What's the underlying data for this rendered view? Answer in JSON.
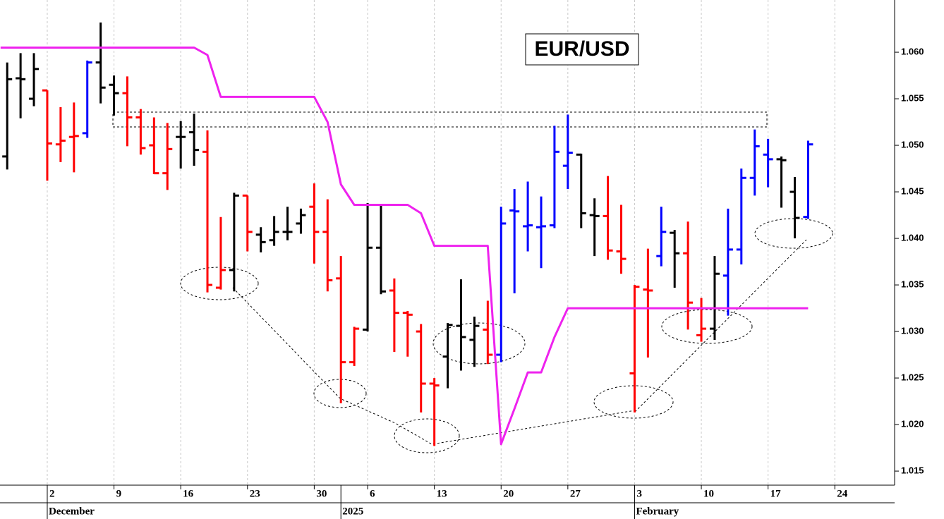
{
  "chart_data": {
    "type": "ohlc",
    "title": "EUR/USD",
    "xlim": [
      -3.54,
      63.48
    ],
    "ylim": [
      1.01349,
      1.06561
    ],
    "grid": true,
    "xticks": [
      {
        "value": 0,
        "label": "2"
      },
      {
        "value": 5,
        "label": "9"
      },
      {
        "value": 10,
        "label": "16"
      },
      {
        "value": 15,
        "label": "23"
      },
      {
        "value": 20,
        "label": "30"
      },
      {
        "value": 24,
        "label": "6"
      },
      {
        "value": 29,
        "label": "13"
      },
      {
        "value": 34,
        "label": "20"
      },
      {
        "value": 39,
        "label": "27"
      },
      {
        "value": 44,
        "label": "3"
      },
      {
        "value": 49,
        "label": "10"
      },
      {
        "value": 54,
        "label": "17"
      },
      {
        "value": 59,
        "label": "24"
      }
    ],
    "month_ticks": [
      {
        "value": 0,
        "label": "December"
      },
      {
        "value": 22,
        "label": "2025"
      },
      {
        "value": 44,
        "label": "February"
      }
    ],
    "yticks": [
      {
        "value": 1.015,
        "label": "1.015"
      },
      {
        "value": 1.02,
        "label": "1.020"
      },
      {
        "value": 1.025,
        "label": "1.025"
      },
      {
        "value": 1.03,
        "label": "1.030"
      },
      {
        "value": 1.035,
        "label": "1.035"
      },
      {
        "value": 1.04,
        "label": "1.040"
      },
      {
        "value": 1.045,
        "label": "1.045"
      },
      {
        "value": 1.05,
        "label": "1.050"
      },
      {
        "value": 1.055,
        "label": "1.055"
      },
      {
        "value": 1.06,
        "label": "1.060"
      }
    ],
    "bars": {
      "x": [
        -3,
        -2,
        -1,
        0,
        1,
        2,
        3,
        4,
        5,
        6,
        7,
        8,
        9,
        10,
        11,
        12,
        13,
        14,
        15,
        16,
        17,
        18,
        19,
        20,
        21,
        22,
        23,
        24,
        25,
        26,
        27,
        28,
        29,
        30,
        31,
        32,
        33,
        34,
        35,
        36,
        37,
        38,
        39,
        40,
        41,
        42,
        43,
        44,
        45,
        46,
        47,
        48,
        49,
        50,
        51,
        52,
        53,
        54,
        55,
        56,
        57
      ],
      "open": [
        1.0488,
        1.0572,
        1.055,
        1.0559,
        1.0501,
        1.0509,
        1.0513,
        1.0589,
        1.0565,
        1.0556,
        1.053,
        1.05,
        1.047,
        1.0509,
        1.0514,
        1.0493,
        1.0347,
        1.0366,
        1.0446,
        1.0404,
        1.0398,
        1.0407,
        1.0416,
        1.0434,
        1.0407,
        1.0357,
        1.0267,
        1.0302,
        1.039,
        1.0344,
        1.032,
        1.03,
        1.0244,
        1.0273,
        1.0306,
        1.0291,
        1.0302,
        1.0275,
        1.043,
        1.0413,
        1.0412,
        1.0414,
        1.0478,
        1.049,
        1.0425,
        1.0424,
        1.0386,
        1.0255,
        1.0345,
        1.0381,
        1.0406,
        1.0384,
        1.0296,
        1.0303,
        1.036,
        1.0388,
        1.0465,
        1.049,
        1.0485,
        1.045,
        1.0423
      ],
      "high": [
        1.0589,
        1.0599,
        1.0599,
        1.0559,
        1.0541,
        1.0546,
        1.0591,
        1.0632,
        1.0575,
        1.0574,
        1.0539,
        1.053,
        1.0524,
        1.0526,
        1.0534,
        1.0516,
        1.0423,
        1.0449,
        1.0446,
        1.0412,
        1.0424,
        1.0434,
        1.0432,
        1.0459,
        1.0442,
        1.0381,
        1.0305,
        1.0438,
        1.0436,
        1.0357,
        1.0322,
        1.0308,
        1.025,
        1.0309,
        1.0356,
        1.0316,
        1.0333,
        1.0434,
        1.0453,
        1.0461,
        1.0445,
        1.0521,
        1.0533,
        1.0491,
        1.0443,
        1.0467,
        1.0436,
        1.035,
        1.0389,
        1.0434,
        1.0409,
        1.0418,
        1.0336,
        1.0381,
        1.0432,
        1.0475,
        1.0517,
        1.0507,
        1.0488,
        1.0466,
        1.0505
      ],
      "low": [
        1.0474,
        1.0529,
        1.0542,
        1.0462,
        1.0482,
        1.0471,
        1.0508,
        1.0545,
        1.0532,
        1.0499,
        1.049,
        1.0469,
        1.0452,
        1.0475,
        1.0478,
        1.0342,
        1.0345,
        1.0343,
        1.0386,
        1.0385,
        1.0392,
        1.0398,
        1.0405,
        1.0373,
        1.0343,
        1.0223,
        1.0263,
        1.03,
        1.034,
        1.0278,
        1.0273,
        1.0213,
        1.0177,
        1.0239,
        1.0258,
        1.0262,
        1.0265,
        1.0267,
        1.0341,
        1.0386,
        1.0368,
        1.0411,
        1.0453,
        1.0411,
        1.0381,
        1.0377,
        1.0362,
        1.0213,
        1.0272,
        1.037,
        1.0347,
        1.0302,
        1.0289,
        1.0291,
        1.0317,
        1.0372,
        1.0446,
        1.0455,
        1.0433,
        1.04,
        1.0421
      ],
      "close": [
        1.0571,
        1.0571,
        1.0582,
        1.0502,
        1.0505,
        1.051,
        1.0589,
        1.0562,
        1.0556,
        1.053,
        1.0497,
        1.047,
        1.0496,
        1.0509,
        1.0495,
        1.035,
        1.0366,
        1.0446,
        1.0407,
        1.0396,
        1.0407,
        1.0407,
        1.0425,
        1.0407,
        1.0355,
        1.0267,
        1.0303,
        1.039,
        1.0343,
        1.032,
        1.0318,
        1.0244,
        1.0242,
        1.0307,
        1.0294,
        1.0306,
        1.0275,
        1.0416,
        1.0429,
        1.0414,
        1.0413,
        1.0493,
        1.0492,
        1.0427,
        1.0424,
        1.0387,
        1.0378,
        1.0348,
        1.0344,
        1.0407,
        1.0384,
        1.0331,
        1.0303,
        1.0362,
        1.0388,
        1.0465,
        1.0499,
        1.0485,
        1.0484,
        1.0422,
        1.0501
      ],
      "colors": [
        "#000000",
        "#000000",
        "#000000",
        "#ff0000",
        "#ff0000",
        "#ff0000",
        "#0000ff",
        "#000000",
        "#000000",
        "#ff0000",
        "#ff0000",
        "#ff0000",
        "#ff0000",
        "#000000",
        "#000000",
        "#ff0000",
        "#ff0000",
        "#000000",
        "#ff0000",
        "#000000",
        "#000000",
        "#000000",
        "#000000",
        "#ff0000",
        "#ff0000",
        "#ff0000",
        "#ff0000",
        "#000000",
        "#000000",
        "#ff0000",
        "#ff0000",
        "#ff0000",
        "#ff0000",
        "#000000",
        "#000000",
        "#000000",
        "#ff0000",
        "#0000ff",
        "#0000ff",
        "#0000ff",
        "#0000ff",
        "#0000ff",
        "#0000ff",
        "#000000",
        "#000000",
        "#ff0000",
        "#ff0000",
        "#ff0000",
        "#ff0000",
        "#0000ff",
        "#000000",
        "#ff0000",
        "#ff0000",
        "#000000",
        "#0000ff",
        "#0000ff",
        "#0000ff",
        "#0000ff",
        "#000000",
        "#000000",
        "#0000ff"
      ]
    },
    "line": {
      "color": "#ee22ee",
      "x": [
        -3.5,
        11,
        12,
        13,
        20,
        21,
        22,
        23,
        27,
        28,
        29,
        33,
        34,
        35,
        36,
        37,
        38,
        39,
        57
      ],
      "values": [
        1.0605,
        1.0605,
        1.0597,
        1.0552,
        1.0552,
        1.0525,
        1.0458,
        1.0436,
        1.0436,
        1.0427,
        1.0392,
        1.0392,
        1.0179,
        1.0217,
        1.0256,
        1.0256,
        1.0294,
        1.0325,
        1.0325
      ]
    }
  }
}
